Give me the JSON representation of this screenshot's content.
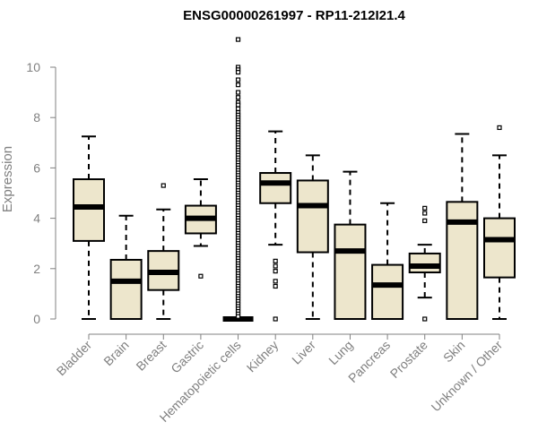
{
  "chart_data": {
    "type": "boxplot",
    "title": "ENSG00000261997 - RP11-212I21.4",
    "ylabel": "Expression",
    "xlabel": "",
    "ylim": [
      0,
      11.4
    ],
    "yticks": [
      "0",
      "2",
      "4",
      "6",
      "8",
      "10"
    ],
    "categories": [
      "Bladder",
      "Brain",
      "Breast",
      "Gastric",
      "Hematopoietic cells",
      "Kidney",
      "Liver",
      "Lung",
      "Pancreas",
      "Prostate",
      "Skin",
      "Unknown / Other"
    ],
    "box_color": "#ede6cc",
    "series": [
      {
        "name": "Bladder",
        "q1": 3.1,
        "median": 4.45,
        "q3": 5.55,
        "whisker_low": 0.0,
        "whisker_high": 7.25,
        "outliers": []
      },
      {
        "name": "Brain",
        "q1": 0.0,
        "median": 1.5,
        "q3": 2.35,
        "whisker_low": 0.0,
        "whisker_high": 4.1,
        "outliers": []
      },
      {
        "name": "Breast",
        "q1": 1.15,
        "median": 1.85,
        "q3": 2.7,
        "whisker_low": 0.0,
        "whisker_high": 4.35,
        "outliers": [
          5.3
        ]
      },
      {
        "name": "Gastric",
        "q1": 3.4,
        "median": 4.0,
        "q3": 4.5,
        "whisker_low": 2.9,
        "whisker_high": 5.55,
        "outliers": [
          1.7
        ]
      },
      {
        "name": "Hematopoietic cells",
        "q1": 0.0,
        "median": 0.0,
        "q3": 0.0,
        "whisker_low": 0.0,
        "whisker_high": 0.0,
        "outliers": [
          11.1,
          10.0,
          9.9,
          9.8,
          9.5,
          9.3,
          9.0,
          8.8,
          8.6,
          8.5,
          8.35,
          8.2,
          8.1,
          8.0,
          7.9,
          7.8,
          7.7,
          7.6,
          7.5,
          7.4,
          7.3,
          7.2,
          7.1,
          7.0,
          6.9,
          6.8,
          6.7,
          6.6,
          6.5,
          6.4,
          6.3,
          6.2,
          6.1,
          6.0,
          5.9,
          5.8,
          5.7,
          5.6,
          5.5,
          5.4,
          5.3,
          5.2,
          5.1,
          5.0,
          4.9,
          4.8,
          4.7,
          4.6,
          4.5,
          4.4,
          4.3,
          4.2,
          4.1,
          4.0,
          3.9,
          3.8,
          3.7,
          3.6,
          3.5,
          3.4,
          3.3,
          3.2,
          3.1,
          3.0,
          2.9,
          2.8,
          2.7,
          2.6,
          2.5,
          2.4,
          2.3,
          2.2,
          2.1,
          2.0,
          1.9,
          1.8,
          1.7,
          1.6,
          1.5,
          1.4,
          1.3,
          1.2,
          1.1,
          1.0,
          0.9,
          0.8,
          0.7,
          0.6,
          0.5,
          0.4,
          0.3,
          0.2,
          0.1
        ]
      },
      {
        "name": "Kidney",
        "q1": 4.6,
        "median": 5.4,
        "q3": 5.8,
        "whisker_low": 2.95,
        "whisker_high": 7.45,
        "outliers": [
          2.3,
          2.1,
          1.9,
          1.5,
          1.3,
          0.0
        ]
      },
      {
        "name": "Liver",
        "q1": 2.65,
        "median": 4.5,
        "q3": 5.5,
        "whisker_low": 0.0,
        "whisker_high": 6.5,
        "outliers": []
      },
      {
        "name": "Lung",
        "q1": 0.0,
        "median": 2.7,
        "q3": 3.75,
        "whisker_low": 0.0,
        "whisker_high": 5.85,
        "outliers": []
      },
      {
        "name": "Pancreas",
        "q1": 0.0,
        "median": 1.35,
        "q3": 2.15,
        "whisker_low": 0.0,
        "whisker_high": 4.6,
        "outliers": []
      },
      {
        "name": "Prostate",
        "q1": 1.85,
        "median": 2.1,
        "q3": 2.6,
        "whisker_low": 0.85,
        "whisker_high": 2.95,
        "outliers": [
          4.4,
          4.2,
          3.9,
          0.0
        ]
      },
      {
        "name": "Skin",
        "q1": 0.0,
        "median": 3.85,
        "q3": 4.65,
        "whisker_low": 0.0,
        "whisker_high": 7.35,
        "outliers": []
      },
      {
        "name": "Unknown / Other",
        "q1": 1.65,
        "median": 3.15,
        "q3": 4.0,
        "whisker_low": 0.0,
        "whisker_high": 6.5,
        "outliers": [
          7.6
        ]
      }
    ]
  }
}
